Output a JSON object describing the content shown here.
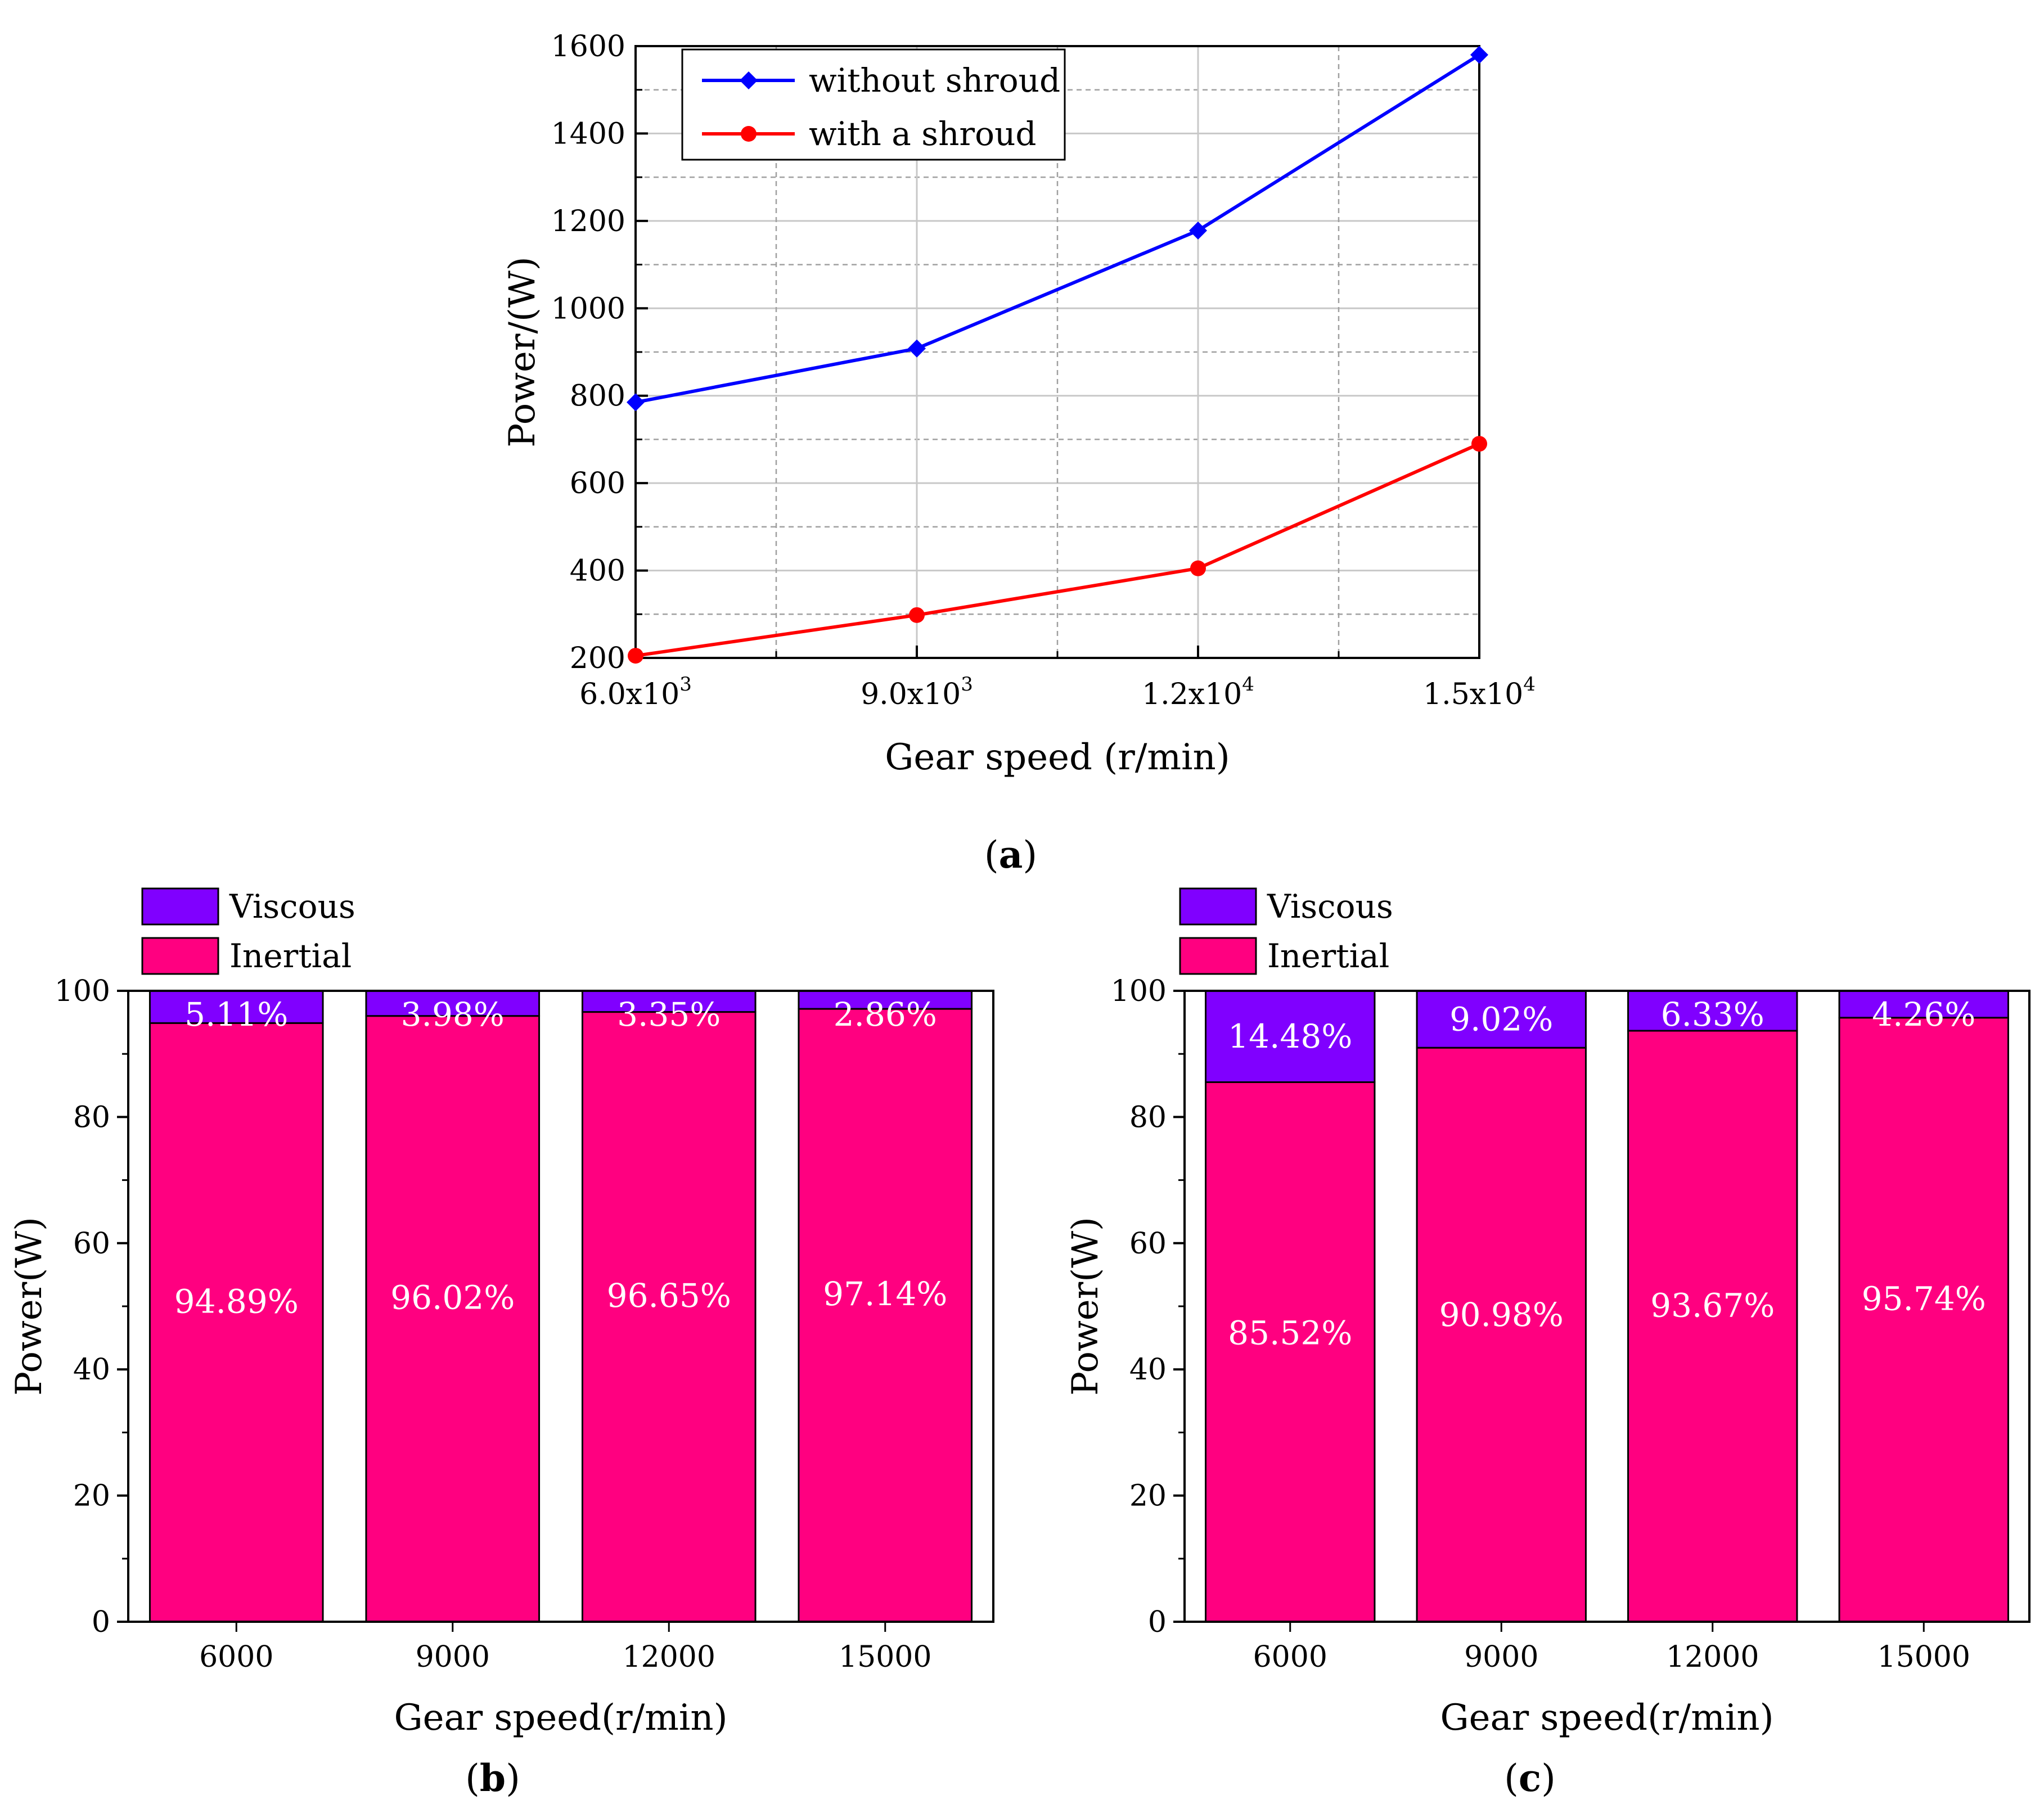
{
  "chart_data": [
    {
      "type": "line",
      "panel_label": "a",
      "title": "",
      "xlabel": "Gear speed (r/min)",
      "ylabel": "Power/(W)",
      "xlim": [
        6000,
        15000
      ],
      "ylim": [
        200,
        1600
      ],
      "x": [
        6000,
        9000,
        12000,
        15000
      ],
      "x_tick_labels": [
        {
          "mantissa": "6.0x10",
          "exponent": "3"
        },
        {
          "mantissa": "9.0x10",
          "exponent": "3"
        },
        {
          "mantissa": "1.2x10",
          "exponent": "4"
        },
        {
          "mantissa": "1.5x10",
          "exponent": "4"
        }
      ],
      "y_ticks": [
        200,
        400,
        600,
        800,
        1000,
        1200,
        1400,
        1600
      ],
      "grid": true,
      "legend_position": "top-left",
      "series": [
        {
          "name": "without shroud",
          "color": "#0000ff",
          "marker": "diamond",
          "values": [
            785,
            908,
            1178,
            1580
          ]
        },
        {
          "name": "with a shroud",
          "color": "#ff0000",
          "marker": "circle",
          "values": [
            205,
            298,
            405,
            690
          ]
        }
      ]
    },
    {
      "type": "bar",
      "stacked": true,
      "panel_label": "b",
      "xlabel": "Gear speed(r/min)",
      "ylabel": "Power(W)",
      "ylim": [
        0,
        100
      ],
      "y_ticks": [
        0,
        20,
        40,
        60,
        80,
        100
      ],
      "categories": [
        "6000",
        "9000",
        "12000",
        "15000"
      ],
      "legend_position": "top-left",
      "series": [
        {
          "name": "Inertial",
          "color": "#ff0080",
          "values": [
            94.89,
            96.02,
            96.65,
            97.14
          ],
          "labels": [
            "94.89%",
            "96.02%",
            "96.65%",
            "97.14%"
          ]
        },
        {
          "name": "Viscous",
          "color": "#8000ff",
          "values": [
            5.11,
            3.98,
            3.35,
            2.86
          ],
          "labels": [
            "5.11%",
            "3.98%",
            "3.35%",
            "2.86%"
          ]
        }
      ]
    },
    {
      "type": "bar",
      "stacked": true,
      "panel_label": "c",
      "xlabel": "Gear speed(r/min)",
      "ylabel": "Power(W)",
      "ylim": [
        0,
        100
      ],
      "y_ticks": [
        0,
        20,
        40,
        60,
        80,
        100
      ],
      "categories": [
        "6000",
        "9000",
        "12000",
        "15000"
      ],
      "legend_position": "top-left",
      "series": [
        {
          "name": "Inertial",
          "color": "#ff0080",
          "values": [
            85.52,
            90.98,
            93.67,
            95.74
          ],
          "labels": [
            "85.52%",
            "90.98%",
            "93.67%",
            "95.74%"
          ]
        },
        {
          "name": "Viscous",
          "color": "#8000ff",
          "values": [
            14.48,
            9.02,
            6.33,
            4.26
          ],
          "labels": [
            "14.48%",
            "9.02%",
            "6.33%",
            "4.26%"
          ]
        }
      ]
    }
  ]
}
